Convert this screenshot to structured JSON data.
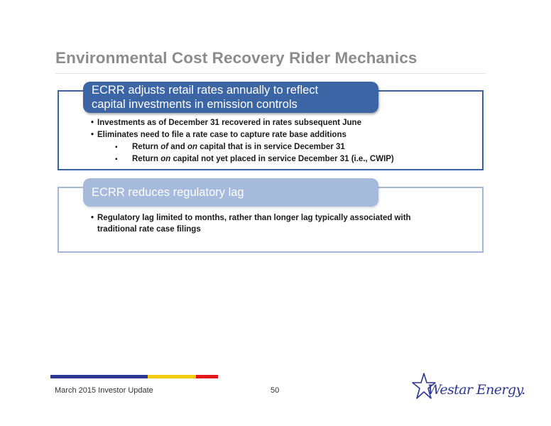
{
  "title": "Environmental Cost Recovery Rider Mechanics",
  "panel1": {
    "label_line1": "ECRR adjusts retail rates annually to reflect",
    "label_line2": "capital investments in emission controls",
    "bullets": [
      "Investments as of December 31 recovered in rates subsequent June",
      "Eliminates need to file a rate case to capture rate base additions"
    ],
    "sub1": {
      "a": "Return ",
      "b": "of",
      "c": " and ",
      "d": "on",
      "e": " capital that is in service December 31"
    },
    "sub2": {
      "a": "Return ",
      "b": "on",
      "c": " capital not yet placed in service December 31 (i.e., CWIP)"
    }
  },
  "panel2": {
    "label": "ECRR reduces regulatory lag",
    "bullet_line1": "Regulatory lag limited to months, rather than longer lag typically associated with",
    "bullet_line2": "traditional rate case filings"
  },
  "footer": {
    "left": "March 2015 Investor Update",
    "page": "50",
    "logo_text": "Westar Energy."
  },
  "colors": {
    "panel1_accent": "#3c65a6",
    "panel2_accent": "#a6badb",
    "bar_blue": "#2d3694",
    "bar_yellow": "#f6cc0a",
    "bar_red": "#e1161e"
  }
}
